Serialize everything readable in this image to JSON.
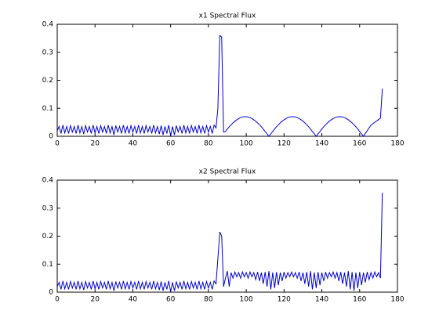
{
  "chart_data": [
    {
      "type": "line",
      "title": "x1 Spectral Flux",
      "color": "#0000cc",
      "xlim": [
        0,
        180
      ],
      "xticks": [
        0,
        20,
        40,
        60,
        80,
        100,
        120,
        140,
        160,
        180
      ],
      "ylim": [
        0,
        0.4
      ],
      "yticks": [
        0,
        0.1,
        0.2,
        0.3,
        0.4
      ],
      "x": [
        0,
        1,
        2,
        3,
        4,
        5,
        6,
        7,
        8,
        9,
        10,
        11,
        12,
        13,
        14,
        15,
        16,
        17,
        18,
        19,
        20,
        21,
        22,
        23,
        24,
        25,
        26,
        27,
        28,
        29,
        30,
        31,
        32,
        33,
        34,
        35,
        36,
        37,
        38,
        39,
        40,
        41,
        42,
        43,
        44,
        45,
        46,
        47,
        48,
        49,
        50,
        51,
        52,
        53,
        54,
        55,
        56,
        57,
        58,
        59,
        60,
        61,
        62,
        63,
        64,
        65,
        66,
        67,
        68,
        69,
        70,
        71,
        72,
        73,
        74,
        75,
        76,
        77,
        78,
        79,
        80,
        81,
        82,
        83,
        84,
        85,
        86,
        87,
        88,
        89,
        90,
        91,
        92,
        93,
        94,
        95,
        96,
        97,
        98,
        99,
        100,
        101,
        102,
        103,
        104,
        105,
        106,
        107,
        108,
        109,
        110,
        111,
        112,
        113,
        114,
        115,
        116,
        117,
        118,
        119,
        120,
        121,
        122,
        123,
        124,
        125,
        126,
        127,
        128,
        129,
        130,
        131,
        132,
        133,
        134,
        135,
        136,
        137,
        138,
        139,
        140,
        141,
        142,
        143,
        144,
        145,
        146,
        147,
        148,
        149,
        150,
        151,
        152,
        153,
        154,
        155,
        156,
        157,
        158,
        159,
        160,
        161,
        162,
        163,
        164,
        165,
        166,
        167,
        168,
        169,
        170,
        171,
        172
      ],
      "values": [
        0.02,
        0.035,
        0.01,
        0.04,
        0.012,
        0.035,
        0.01,
        0.038,
        0.015,
        0.035,
        0.01,
        0.04,
        0.012,
        0.035,
        0.008,
        0.038,
        0.015,
        0.035,
        0.01,
        0.04,
        0.012,
        0.035,
        0.01,
        0.038,
        0.015,
        0.035,
        0.01,
        0.04,
        0.012,
        0.035,
        0.005,
        0.038,
        0.015,
        0.035,
        0.01,
        0.04,
        0.012,
        0.035,
        0.01,
        0.038,
        0.015,
        0.035,
        0.01,
        0.04,
        0.012,
        0.035,
        0.01,
        0.038,
        0.015,
        0.035,
        0.01,
        0.04,
        0.012,
        0.035,
        0.008,
        0.038,
        0.005,
        0.035,
        0.01,
        0.04,
        0.002,
        0.035,
        0.005,
        0.038,
        0.015,
        0.035,
        0.01,
        0.04,
        0.012,
        0.035,
        0.01,
        0.038,
        0.015,
        0.035,
        0.01,
        0.04,
        0.012,
        0.035,
        0.01,
        0.038,
        0.015,
        0.035,
        0.01,
        0.04,
        0.03,
        0.1,
        0.36,
        0.355,
        0.015,
        0.017,
        0.026,
        0.034,
        0.041,
        0.048,
        0.054,
        0.059,
        0.063,
        0.067,
        0.069,
        0.07,
        0.07,
        0.069,
        0.067,
        0.063,
        0.059,
        0.054,
        0.048,
        0.041,
        0.034,
        0.026,
        0.017,
        0.009,
        0,
        0.009,
        0.017,
        0.026,
        0.034,
        0.041,
        0.048,
        0.054,
        0.059,
        0.063,
        0.067,
        0.069,
        0.07,
        0.07,
        0.069,
        0.067,
        0.063,
        0.059,
        0.054,
        0.048,
        0.041,
        0.034,
        0.026,
        0.017,
        0.009,
        0,
        0.009,
        0.017,
        0.026,
        0.034,
        0.041,
        0.048,
        0.054,
        0.059,
        0.063,
        0.067,
        0.069,
        0.07,
        0.07,
        0.069,
        0.067,
        0.063,
        0.059,
        0.054,
        0.048,
        0.041,
        0.034,
        0.026,
        0.017,
        0.009,
        0,
        0.01,
        0.02,
        0.03,
        0.04,
        0.045,
        0.05,
        0.055,
        0.06,
        0.065,
        0.17
      ]
    },
    {
      "type": "line",
      "title": "x2 Spectral Flux",
      "color": "#0000cc",
      "xlim": [
        0,
        180
      ],
      "xticks": [
        0,
        20,
        40,
        60,
        80,
        100,
        120,
        140,
        160,
        180
      ],
      "ylim": [
        0,
        0.4
      ],
      "yticks": [
        0,
        0.1,
        0.2,
        0.3,
        0.4
      ],
      "x": [
        0,
        1,
        2,
        3,
        4,
        5,
        6,
        7,
        8,
        9,
        10,
        11,
        12,
        13,
        14,
        15,
        16,
        17,
        18,
        19,
        20,
        21,
        22,
        23,
        24,
        25,
        26,
        27,
        28,
        29,
        30,
        31,
        32,
        33,
        34,
        35,
        36,
        37,
        38,
        39,
        40,
        41,
        42,
        43,
        44,
        45,
        46,
        47,
        48,
        49,
        50,
        51,
        52,
        53,
        54,
        55,
        56,
        57,
        58,
        59,
        60,
        61,
        62,
        63,
        64,
        65,
        66,
        67,
        68,
        69,
        70,
        71,
        72,
        73,
        74,
        75,
        76,
        77,
        78,
        79,
        80,
        81,
        82,
        83,
        84,
        85,
        86,
        87,
        88,
        89,
        90,
        91,
        92,
        93,
        94,
        95,
        96,
        97,
        98,
        99,
        100,
        101,
        102,
        103,
        104,
        105,
        106,
        107,
        108,
        109,
        110,
        111,
        112,
        113,
        114,
        115,
        116,
        117,
        118,
        119,
        120,
        121,
        122,
        123,
        124,
        125,
        126,
        127,
        128,
        129,
        130,
        131,
        132,
        133,
        134,
        135,
        136,
        137,
        138,
        139,
        140,
        141,
        142,
        143,
        144,
        145,
        146,
        147,
        148,
        149,
        150,
        151,
        152,
        153,
        154,
        155,
        156,
        157,
        158,
        159,
        160,
        161,
        162,
        163,
        164,
        165,
        166,
        167,
        168,
        169,
        170,
        171,
        172
      ],
      "values": [
        0.02,
        0.035,
        0.01,
        0.04,
        0.012,
        0.035,
        0.01,
        0.038,
        0.015,
        0.035,
        0.01,
        0.04,
        0.012,
        0.035,
        0.008,
        0.038,
        0.015,
        0.035,
        0.01,
        0.04,
        0.012,
        0.035,
        0.01,
        0.038,
        0.015,
        0.035,
        0.01,
        0.04,
        0.012,
        0.035,
        0.005,
        0.038,
        0.015,
        0.035,
        0.01,
        0.04,
        0.012,
        0.035,
        0.01,
        0.038,
        0.015,
        0.035,
        0.01,
        0.04,
        0.012,
        0.035,
        0.01,
        0.038,
        0.015,
        0.035,
        0.01,
        0.04,
        0.012,
        0.035,
        0.008,
        0.038,
        0.005,
        0.035,
        0.01,
        0.04,
        0.002,
        0.035,
        0.005,
        0.038,
        0.015,
        0.035,
        0.01,
        0.04,
        0.012,
        0.035,
        0.01,
        0.038,
        0.015,
        0.035,
        0.01,
        0.04,
        0.012,
        0.035,
        0.01,
        0.038,
        0.015,
        0.035,
        0.01,
        0.04,
        0.03,
        0.12,
        0.215,
        0.2,
        0.02,
        0.05,
        0.075,
        0.02,
        0.07,
        0.05,
        0.072,
        0.055,
        0.07,
        0.05,
        0.072,
        0.055,
        0.07,
        0.05,
        0.072,
        0.055,
        0.07,
        0.045,
        0.072,
        0.04,
        0.07,
        0.03,
        0.072,
        0.02,
        0.075,
        0.01,
        0.07,
        0.015,
        0.072,
        0.025,
        0.07,
        0.04,
        0.072,
        0.05,
        0.07,
        0.055,
        0.072,
        0.055,
        0.07,
        0.05,
        0.072,
        0.04,
        0.07,
        0.03,
        0.072,
        0.02,
        0.075,
        0.01,
        0.07,
        0.015,
        0.072,
        0.025,
        0.07,
        0.04,
        0.072,
        0.05,
        0.07,
        0.055,
        0.072,
        0.05,
        0.07,
        0.04,
        0.072,
        0.03,
        0.07,
        0.02,
        0.075,
        0.01,
        0.072,
        0.005,
        0.07,
        0.015,
        0.072,
        0.025,
        0.07,
        0.035,
        0.072,
        0.045,
        0.07,
        0.05,
        0.072,
        0.055,
        0.07,
        0.05,
        0.355
      ]
    }
  ]
}
